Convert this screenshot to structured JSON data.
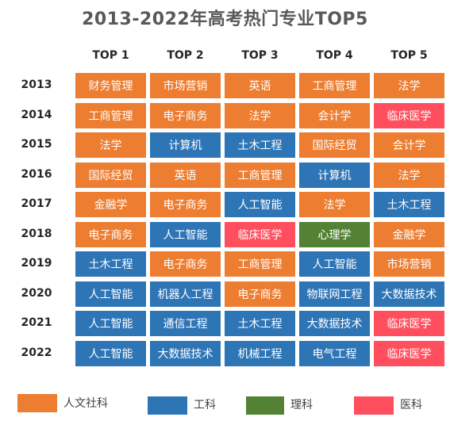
{
  "chart_data": {
    "type": "table",
    "title": "2013-2022年高考热门专业TOP5",
    "columns": [
      "TOP 1",
      "TOP 2",
      "TOP 3",
      "TOP 4",
      "TOP 5"
    ],
    "rows": [
      {
        "year": "2013",
        "majors": [
          "财务管理",
          "市场营销",
          "英语",
          "工商管理",
          "法学"
        ],
        "categories": [
          "humanities",
          "humanities",
          "humanities",
          "humanities",
          "humanities"
        ]
      },
      {
        "year": "2014",
        "majors": [
          "工商管理",
          "电子商务",
          "法学",
          "会计学",
          "临床医学"
        ],
        "categories": [
          "humanities",
          "humanities",
          "humanities",
          "humanities",
          "medicine"
        ]
      },
      {
        "year": "2015",
        "majors": [
          "法学",
          "计算机",
          "土木工程",
          "国际经贸",
          "会计学"
        ],
        "categories": [
          "humanities",
          "engineering",
          "engineering",
          "humanities",
          "humanities"
        ]
      },
      {
        "year": "2016",
        "majors": [
          "国际经贸",
          "英语",
          "工商管理",
          "计算机",
          "法学"
        ],
        "categories": [
          "humanities",
          "humanities",
          "humanities",
          "engineering",
          "humanities"
        ]
      },
      {
        "year": "2017",
        "majors": [
          "金融学",
          "电子商务",
          "人工智能",
          "法学",
          "土木工程"
        ],
        "categories": [
          "humanities",
          "humanities",
          "engineering",
          "humanities",
          "engineering"
        ]
      },
      {
        "year": "2018",
        "majors": [
          "电子商务",
          "人工智能",
          "临床医学",
          "心理学",
          "金融学"
        ],
        "categories": [
          "humanities",
          "engineering",
          "medicine",
          "science",
          "humanities"
        ]
      },
      {
        "year": "2019",
        "majors": [
          "土木工程",
          "电子商务",
          "工商管理",
          "人工智能",
          "市场营销"
        ],
        "categories": [
          "engineering",
          "humanities",
          "humanities",
          "engineering",
          "humanities"
        ]
      },
      {
        "year": "2020",
        "majors": [
          "人工智能",
          "机器人工程",
          "电子商务",
          "物联网工程",
          "大数据技术"
        ],
        "categories": [
          "engineering",
          "engineering",
          "humanities",
          "engineering",
          "engineering"
        ]
      },
      {
        "year": "2021",
        "majors": [
          "人工智能",
          "通信工程",
          "土木工程",
          "大数据技术",
          "临床医学"
        ],
        "categories": [
          "engineering",
          "engineering",
          "engineering",
          "engineering",
          "medicine"
        ]
      },
      {
        "year": "2022",
        "majors": [
          "人工智能",
          "大数据技术",
          "机械工程",
          "电气工程",
          "临床医学"
        ],
        "categories": [
          "engineering",
          "engineering",
          "engineering",
          "engineering",
          "medicine"
        ]
      }
    ],
    "legend": [
      {
        "key": "humanities",
        "label": "人文社科",
        "color": "#ED7D31"
      },
      {
        "key": "engineering",
        "label": "工科",
        "color": "#2E75B6"
      },
      {
        "key": "science",
        "label": "理科",
        "color": "#548235"
      },
      {
        "key": "medicine",
        "label": "医科",
        "color": "#FF4F5E"
      }
    ],
    "legend_position": "bottom"
  }
}
